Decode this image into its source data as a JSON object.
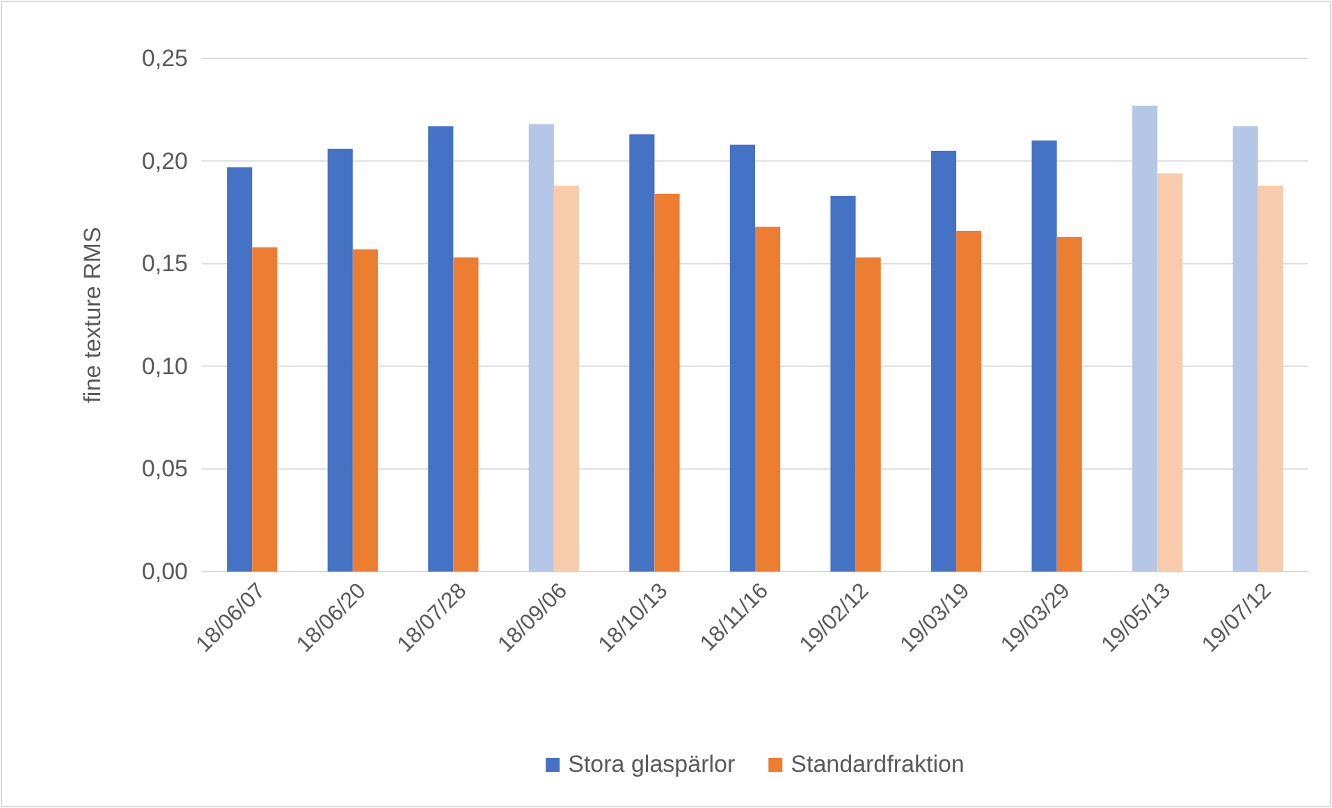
{
  "chart_data": {
    "type": "bar",
    "ylabel": "fine texture RMS",
    "categories": [
      "18/06/07",
      "18/06/20",
      "18/07/28",
      "18/09/06",
      "18/10/13",
      "18/11/16",
      "19/02/12",
      "19/03/19",
      "19/03/29",
      "19/05/13",
      "19/07/12"
    ],
    "series": [
      {
        "name": "Stora glaspärlor",
        "color": "#4472c4",
        "colors": [
          "#4472c4",
          "#4472c4",
          "#4472c4",
          "#b4c7e7",
          "#4472c4",
          "#4472c4",
          "#4472c4",
          "#4472c4",
          "#4472c4",
          "#b4c7e7",
          "#b4c7e7"
        ],
        "values": [
          0.197,
          0.206,
          0.217,
          0.218,
          0.213,
          0.208,
          0.183,
          0.205,
          0.21,
          0.227,
          0.217
        ]
      },
      {
        "name": "Standardfraktion",
        "color": "#ed7d31",
        "colors": [
          "#ed7d31",
          "#ed7d31",
          "#ed7d31",
          "#f8cbad",
          "#ed7d31",
          "#ed7d31",
          "#ed7d31",
          "#ed7d31",
          "#ed7d31",
          "#f8cbad",
          "#f8cbad"
        ],
        "values": [
          0.158,
          0.157,
          0.153,
          0.188,
          0.184,
          0.168,
          0.153,
          0.166,
          0.163,
          0.194,
          0.188
        ]
      }
    ],
    "ylim": [
      0,
      0.25
    ],
    "yticks": [
      {
        "value": 0,
        "label": "0,00"
      },
      {
        "value": 0.05,
        "label": "0,05"
      },
      {
        "value": 0.1,
        "label": "0,10"
      },
      {
        "value": 0.15,
        "label": "0,15"
      },
      {
        "value": 0.2,
        "label": "0,20"
      },
      {
        "value": 0.25,
        "label": "0,25"
      }
    ],
    "grid": "y",
    "legend": "bottom"
  }
}
